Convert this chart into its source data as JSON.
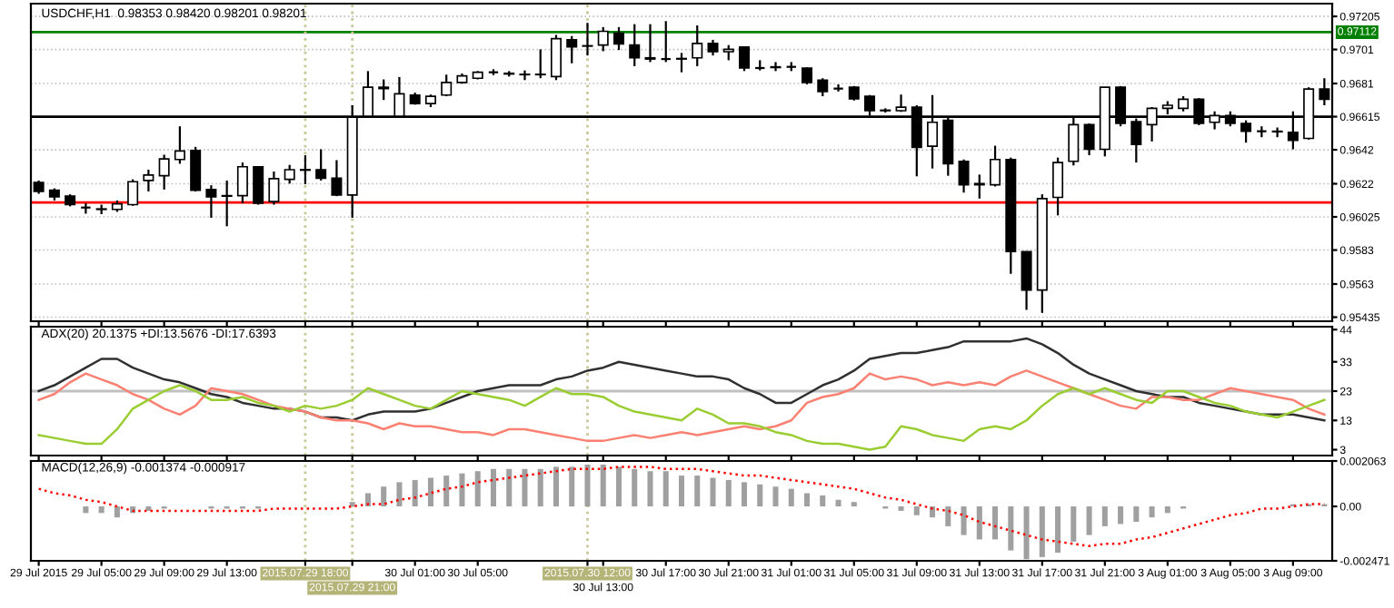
{
  "chart_data": [
    {
      "type": "candlestick",
      "title": "USDCHF,H1  0.98353 0.98420 0.98201 0.98201",
      "categories": [
        "29 Jul 2015",
        null,
        null,
        null,
        "29 Jul 05:00",
        null,
        null,
        null,
        "29 Jul 09:00",
        null,
        null,
        null,
        "29 Jul 13:00",
        null,
        null,
        null,
        null,
        "2015.07.29 18:00",
        null,
        null,
        "2015.07.29 21:00",
        null,
        null,
        null,
        "30 Jul 01:00",
        null,
        null,
        null,
        "30 Jul 05:00",
        null,
        null,
        null,
        null,
        null,
        null,
        "2015.07.30 12:00",
        "30 Jul 13:00",
        null,
        null,
        null,
        "30 Jul 17:00",
        null,
        null,
        null,
        "30 Jul 21:00",
        null,
        null,
        null,
        "31 Jul 01:00",
        null,
        null,
        null,
        "31 Jul 05:00",
        null,
        null,
        null,
        "31 Jul 09:00",
        null,
        null,
        null,
        "31 Jul 13:00",
        null,
        null,
        null,
        "31 Jul 17:00",
        null,
        null,
        null,
        "31 Jul 21:00",
        null,
        null,
        null,
        "3 Aug 01:00",
        null,
        null,
        null,
        "3 Aug 05:00",
        null,
        null,
        null,
        "3 Aug 09:00",
        null,
        null
      ],
      "ohlc": [
        [
          0.96228,
          0.96239,
          0.96161,
          0.96175
        ],
        [
          0.96182,
          0.96193,
          0.96122,
          0.96143
        ],
        [
          0.96147,
          0.96158,
          0.96087,
          0.96097
        ],
        [
          0.9608,
          0.96105,
          0.96044,
          0.9608
        ],
        [
          0.96069,
          0.96097,
          0.96041,
          0.96072
        ],
        [
          0.96069,
          0.96122,
          0.96055,
          0.96101
        ],
        [
          0.96097,
          0.96246,
          0.9609,
          0.96232
        ],
        [
          0.96239,
          0.96303,
          0.96175,
          0.96271
        ],
        [
          0.96267,
          0.96391,
          0.96186,
          0.96366
        ],
        [
          0.96363,
          0.96558,
          0.96338,
          0.96413
        ],
        [
          0.96416,
          0.96437,
          0.96175,
          0.96182
        ],
        [
          0.96186,
          0.96211,
          0.9602,
          0.96143
        ],
        [
          0.9615,
          0.96239,
          0.9597,
          0.96147
        ],
        [
          0.9615,
          0.96345,
          0.96105,
          0.9632
        ],
        [
          0.9632,
          0.9632,
          0.96097,
          0.96105
        ],
        [
          0.96115,
          0.96292,
          0.96097,
          0.9625
        ],
        [
          0.96246,
          0.96331,
          0.96221,
          0.96303
        ],
        [
          0.96303,
          0.96388,
          0.96218,
          0.963
        ],
        [
          0.96303,
          0.96423,
          0.96239,
          0.96253
        ],
        [
          0.96253,
          0.96359,
          0.96147,
          0.96154
        ],
        [
          0.96154,
          0.96682,
          0.9602,
          0.96611
        ],
        [
          0.96618,
          0.96883,
          0.96607,
          0.96788
        ],
        [
          0.96788,
          0.96834,
          0.96713,
          0.9678
        ],
        [
          0.96618,
          0.96848,
          0.96611,
          0.96749
        ],
        [
          0.96742,
          0.96756,
          0.96685,
          0.96692
        ],
        [
          0.96692,
          0.96745,
          0.96671,
          0.96735
        ],
        [
          0.96742,
          0.96862,
          0.96735,
          0.96816
        ],
        [
          0.96816,
          0.96869,
          0.96809,
          0.96855
        ],
        [
          0.96841,
          0.96883,
          0.96834,
          0.96876
        ],
        [
          0.96876,
          0.96894,
          0.96859,
          0.96876
        ],
        [
          0.9687,
          0.96883,
          0.96851,
          0.96866
        ],
        [
          0.96864,
          0.96887,
          0.9683,
          0.96862
        ],
        [
          0.96862,
          0.97011,
          0.96841,
          0.96864
        ],
        [
          0.96851,
          0.97096,
          0.9683,
          0.97074
        ],
        [
          0.97067,
          0.97089,
          0.96929,
          0.97025
        ],
        [
          0.9703,
          0.97167,
          0.96975,
          0.97032
        ],
        [
          0.97036,
          0.97142,
          0.97,
          0.97117
        ],
        [
          0.97106,
          0.97142,
          0.97007,
          0.97043
        ],
        [
          0.97036,
          0.97159,
          0.96912,
          0.96961
        ],
        [
          0.96961,
          0.97159,
          0.96936,
          0.96954
        ],
        [
          0.96954,
          0.97177,
          0.96936,
          0.96954
        ],
        [
          0.96954,
          0.9699,
          0.96876,
          0.96957
        ],
        [
          0.96961,
          0.97152,
          0.96912,
          0.97046
        ],
        [
          0.97046,
          0.97067,
          0.96975,
          0.96997
        ],
        [
          0.96997,
          0.97036,
          0.96947,
          0.97011
        ],
        [
          0.97025,
          0.97025,
          0.96883,
          0.96901
        ],
        [
          0.96901,
          0.96947,
          0.96887,
          0.96901
        ],
        [
          0.96904,
          0.96936,
          0.96883,
          0.96908
        ],
        [
          0.96908,
          0.96936,
          0.96883,
          0.96908
        ],
        [
          0.96901,
          0.96905,
          0.96805,
          0.96816
        ],
        [
          0.9683,
          0.96841,
          0.96735,
          0.96763
        ],
        [
          0.9678,
          0.96805,
          0.96763,
          0.9678
        ],
        [
          0.96788,
          0.96795,
          0.9671,
          0.9672
        ],
        [
          0.96735,
          0.96742,
          0.96621,
          0.9665
        ],
        [
          0.9665,
          0.96664,
          0.96639,
          0.96653
        ],
        [
          0.9665,
          0.96745,
          0.96643,
          0.96671
        ],
        [
          0.96671,
          0.96682,
          0.96264,
          0.96434
        ],
        [
          0.96441,
          0.96742,
          0.9631,
          0.96582
        ],
        [
          0.96593,
          0.96611,
          0.96267,
          0.96338
        ],
        [
          0.96352,
          0.96363,
          0.96168,
          0.96214
        ],
        [
          0.96214,
          0.96274,
          0.96133,
          0.96221
        ],
        [
          0.96214,
          0.96444,
          0.96204,
          0.96363
        ],
        [
          0.96363,
          0.96374,
          0.9569,
          0.95821
        ],
        [
          0.95821,
          0.95821,
          0.95478,
          0.95595
        ],
        [
          0.95595,
          0.96158,
          0.9546,
          0.96133
        ],
        [
          0.9614,
          0.96374,
          0.96034,
          0.96345
        ],
        [
          0.96352,
          0.96611,
          0.96328,
          0.96568
        ],
        [
          0.96568,
          0.96575,
          0.96388,
          0.96423
        ],
        [
          0.96423,
          0.96788,
          0.96381,
          0.96788
        ],
        [
          0.96788,
          0.96795,
          0.96558,
          0.96575
        ],
        [
          0.96586,
          0.96604,
          0.96345,
          0.96451
        ],
        [
          0.96568,
          0.96671,
          0.96469,
          0.96664
        ],
        [
          0.96664,
          0.96706,
          0.96628,
          0.96682
        ],
        [
          0.96664,
          0.96735,
          0.96646,
          0.96717
        ],
        [
          0.96717,
          0.96724,
          0.96565,
          0.96575
        ],
        [
          0.96582,
          0.96646,
          0.9654,
          0.96621
        ],
        [
          0.96621,
          0.96646,
          0.96558,
          0.96575
        ],
        [
          0.96575,
          0.96593,
          0.96462,
          0.96529
        ],
        [
          0.96529,
          0.96558,
          0.96494,
          0.96529
        ],
        [
          0.96529,
          0.96551,
          0.96494,
          0.96526
        ],
        [
          0.96522,
          0.96646,
          0.96423,
          0.96476
        ],
        [
          0.96487,
          0.96788,
          0.9648,
          0.96777
        ],
        [
          0.96777,
          0.96841,
          0.96682,
          0.96717
        ]
      ],
      "ylim": [
        0.95411,
        0.9728
      ],
      "yticks": [
        0.97205,
        0.9701,
        0.9681,
        0.96615,
        0.9642,
        0.9622,
        0.96025,
        0.9583,
        0.9563,
        0.95435
      ],
      "grid": "y",
      "tick_labels": "y",
      "ref_lines": [
        {
          "axis": "y",
          "value": 0.97112,
          "label": "0.97112",
          "color": "#008000"
        },
        {
          "axis": "y",
          "value": 0.9611,
          "color": "#ff0000"
        },
        {
          "axis": "y",
          "value": 0.96615,
          "color": "#000000"
        },
        {
          "axis": "x",
          "value": "2015.07.29 18:00",
          "color": "#c8c896",
          "line_style": "dotted"
        },
        {
          "axis": "x",
          "value": "2015.07.29 21:00",
          "color": "#c8c896",
          "line_style": "dotted"
        },
        {
          "axis": "x",
          "value": "2015.07.30 12:00",
          "color": "#c8c896",
          "line_style": "dotted"
        }
      ]
    },
    {
      "type": "line",
      "title": "ADX(20) 20.1375 +DI:13.5676 -DI:17.6393",
      "categories": [
        "29 Jul 2015",
        null,
        null,
        null,
        "29 Jul 05:00",
        null,
        null,
        null,
        "29 Jul 09:00",
        null,
        null,
        null,
        "29 Jul 13:00",
        null,
        null,
        null,
        null,
        "2015.07.29 18:00",
        null,
        null,
        "2015.07.29 21:00",
        null,
        null,
        null,
        "30 Jul 01:00",
        null,
        null,
        null,
        "30 Jul 05:00",
        null,
        null,
        null,
        null,
        null,
        null,
        "2015.07.30 12:00",
        "30 Jul 13:00",
        null,
        null,
        null,
        "30 Jul 17:00",
        null,
        null,
        null,
        "30 Jul 21:00",
        null,
        null,
        null,
        "31 Jul 01:00",
        null,
        null,
        null,
        "31 Jul 05:00",
        null,
        null,
        null,
        "31 Jul 09:00",
        null,
        null,
        null,
        "31 Jul 13:00",
        null,
        null,
        null,
        "31 Jul 17:00",
        null,
        null,
        null,
        "31 Jul 21:00",
        null,
        null,
        null,
        "3 Aug 01:00",
        null,
        null,
        null,
        "3 Aug 05:00",
        null,
        null,
        null,
        "3 Aug 09:00",
        null,
        null
      ],
      "series": [
        {
          "color": "#303030",
          "values": [
            23,
            25,
            28,
            31,
            34,
            34,
            31,
            29,
            27,
            26,
            24,
            22,
            21,
            19,
            18,
            17,
            17,
            16,
            14,
            14,
            13,
            15,
            16,
            16,
            16,
            17,
            19,
            21,
            23,
            24,
            25,
            25,
            25,
            27,
            28,
            30,
            31,
            33,
            32,
            31,
            30,
            29,
            28,
            28,
            27,
            24,
            22,
            19,
            19,
            22,
            25,
            27,
            30,
            34,
            35,
            36,
            36,
            37,
            38,
            40,
            40,
            40,
            40,
            41,
            39,
            36,
            32,
            29,
            27,
            25,
            23,
            22,
            21,
            21,
            19,
            18,
            17,
            16,
            15,
            15,
            15,
            14,
            13
          ]
        },
        {
          "color": "#fa8072",
          "values": [
            20,
            22,
            26,
            29,
            27,
            25,
            22,
            20,
            17,
            15,
            18,
            24,
            23,
            22,
            20,
            18,
            17,
            16,
            14,
            13,
            13,
            12,
            10,
            12,
            11,
            11,
            10,
            9,
            9,
            8,
            10,
            10,
            9,
            8,
            7,
            6,
            6,
            7,
            8,
            7,
            8,
            9,
            8,
            9,
            10,
            11,
            10,
            11,
            13,
            19,
            21,
            22,
            24,
            29,
            27,
            28,
            27,
            25,
            26,
            25,
            26,
            25,
            28,
            30,
            28,
            26,
            24,
            22,
            20,
            18,
            17,
            21,
            21,
            20,
            20,
            22,
            24,
            23,
            22,
            21,
            20,
            17,
            15
          ]
        },
        {
          "color": "#9acd32",
          "values": [
            8,
            7,
            6,
            5,
            5,
            10,
            17,
            20,
            23,
            25,
            23,
            20,
            20,
            21,
            19,
            18,
            16,
            18,
            17,
            18,
            20,
            24,
            22,
            20,
            18,
            17,
            20,
            23,
            22,
            21,
            20,
            18,
            21,
            24,
            22,
            22,
            21,
            18,
            16,
            15,
            14,
            13,
            17,
            15,
            12,
            12,
            11,
            9,
            8,
            6,
            5,
            5,
            4,
            3,
            4,
            11,
            10,
            8,
            7,
            6,
            10,
            11,
            10,
            13,
            18,
            22,
            24,
            22,
            24,
            22,
            20,
            19,
            23,
            23,
            21,
            19,
            18,
            16,
            15,
            14,
            16,
            18,
            20
          ]
        }
      ],
      "ylim": [
        1,
        45
      ],
      "yticks": [
        44,
        33,
        23,
        13,
        3
      ],
      "tick_labels": "y",
      "ref_lines": [
        {
          "axis": "y",
          "value": 23,
          "color": "#c0c0c0"
        },
        {
          "axis": "x",
          "value": "2015.07.29 18:00",
          "color": "#c8c896",
          "line_style": "dotted"
        },
        {
          "axis": "x",
          "value": "2015.07.29 21:00",
          "color": "#c8c896",
          "line_style": "dotted"
        },
        {
          "axis": "x",
          "value": "2015.07.30 12:00",
          "color": "#c8c896",
          "line_style": "dotted"
        }
      ]
    },
    {
      "type": "bar",
      "title": "MACD(12,26,9) -0.001374 -0.000917",
      "categories": [
        "29 Jul 2015",
        null,
        null,
        null,
        "29 Jul 05:00",
        null,
        null,
        null,
        "29 Jul 09:00",
        null,
        null,
        null,
        "29 Jul 13:00",
        null,
        null,
        null,
        null,
        "2015.07.29 18:00",
        null,
        null,
        "2015.07.29 21:00",
        null,
        null,
        null,
        "30 Jul 01:00",
        null,
        null,
        null,
        "30 Jul 05:00",
        null,
        null,
        null,
        null,
        null,
        null,
        "2015.07.30 12:00",
        "30 Jul 13:00",
        null,
        null,
        null,
        "30 Jul 17:00",
        null,
        null,
        null,
        "30 Jul 21:00",
        null,
        null,
        null,
        "31 Jul 01:00",
        null,
        null,
        null,
        "31 Jul 05:00",
        null,
        null,
        null,
        "31 Jul 09:00",
        null,
        null,
        null,
        "31 Jul 13:00",
        null,
        null,
        null,
        "31 Jul 17:00",
        null,
        null,
        null,
        "31 Jul 21:00",
        null,
        null,
        null,
        "3 Aug 01:00",
        null,
        null,
        null,
        "3 Aug 05:00",
        null,
        null,
        null,
        "3 Aug 09:00",
        null,
        null
      ],
      "series": [
        {
          "type": "bar",
          "color": "#a0a0a0",
          "values": [
            0,
            0,
            0,
            -0.0003,
            -0.0003,
            -0.0005,
            -0.0003,
            -0.0002,
            -0.0001,
            0,
            0,
            -0.0001,
            -0.0001,
            -0.0001,
            -0.0001,
            0,
            0,
            0,
            0,
            0,
            0.0002,
            0.0006,
            0.0009,
            0.0011,
            0.0012,
            0.0013,
            0.0014,
            0.0015,
            0.0016,
            0.0017,
            0.0017,
            0.0017,
            0.0017,
            0.0018,
            0.0018,
            0.0019,
            0.0019,
            0.0018,
            0.0017,
            0.0016,
            0.0016,
            0.0014,
            0.0014,
            0.0013,
            0.0012,
            0.0011,
            0.001,
            0.0009,
            0.0008,
            0.0006,
            0.0005,
            0.0003,
            0.0002,
            0,
            -0.0001,
            -0.0002,
            -0.0004,
            -0.0005,
            -0.0009,
            -0.0013,
            -0.0015,
            -0.0015,
            -0.002,
            -0.0024,
            -0.0023,
            -0.0021,
            -0.0016,
            -0.0013,
            -0.0009,
            -0.0008,
            -0.0007,
            -0.0005,
            -0.0003,
            -0.0001,
            0,
            0,
            0,
            0,
            0,
            0,
            0.0001,
            0.0001,
            0.0001
          ]
        },
        {
          "type": "line",
          "color": "#ff0000",
          "line_style": "dotted",
          "values": [
            0.0008,
            0.0006,
            0.0005,
            0.0003,
            0.0002,
            0,
            -0.0002,
            -0.0002,
            -0.0002,
            -0.0002,
            -0.0002,
            -0.0002,
            -0.0002,
            -0.0002,
            -0.0002,
            -0.0001,
            -0.0001,
            -0.0001,
            -0.0001,
            -0.0001,
            0,
            0.0001,
            0.0001,
            0.0003,
            0.0004,
            0.0006,
            0.0008,
            0.0009,
            0.0011,
            0.0012,
            0.0013,
            0.0014,
            0.0015,
            0.0016,
            0.0017,
            0.0017,
            0.0017,
            0.0018,
            0.0018,
            0.0018,
            0.0017,
            0.0017,
            0.0017,
            0.0016,
            0.0015,
            0.0014,
            0.0014,
            0.0013,
            0.0012,
            0.0011,
            0.001,
            0.0009,
            0.0008,
            0.0006,
            0.0004,
            0.0003,
            0.0001,
            -0.0001,
            -0.0002,
            -0.0004,
            -0.0007,
            -0.0009,
            -0.0011,
            -0.0013,
            -0.0015,
            -0.0016,
            -0.0017,
            -0.0018,
            -0.0017,
            -0.0017,
            -0.0015,
            -0.0014,
            -0.0012,
            -0.001,
            -0.0008,
            -0.0006,
            -0.0004,
            -0.0003,
            -0.0001,
            -0.0001,
            0,
            0.0001,
            0.0001
          ]
        }
      ],
      "ylim": [
        -0.002471,
        0.002063
      ],
      "yticks": [
        0.002063,
        {
          "value": 0,
          "label": "0.00"
        },
        -0.002471
      ],
      "ref_lines": [
        {
          "axis": "x",
          "value": "2015.07.29 18:00",
          "color": "#c8c896",
          "line_style": "dotted"
        },
        {
          "axis": "x",
          "value": "2015.07.29 21:00",
          "color": "#c8c896",
          "line_style": "dotted"
        },
        {
          "axis": "x",
          "value": "2015.07.30 12:00",
          "color": "#c8c896",
          "line_style": "dotted"
        }
      ]
    }
  ]
}
